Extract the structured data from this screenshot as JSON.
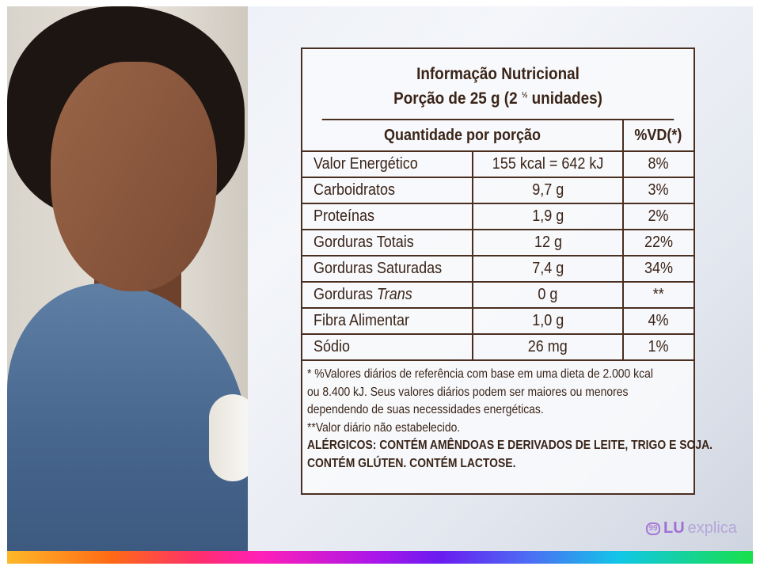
{
  "panel": {
    "title_line1": "Informação Nutricional",
    "title_line2": "Porção de 25 g (2",
    "title_fraction": "½",
    "title_line2_end": "unidades)",
    "col_quantity": "Quantidade por porção",
    "col_vd": "%VD(*)",
    "rows": [
      {
        "name": "Valor Energético",
        "amount": "155 kcal = 642 kJ",
        "vd": "8%"
      },
      {
        "name": "Carboidratos",
        "amount": "9,7 g",
        "vd": "3%"
      },
      {
        "name": "Proteínas",
        "amount": "1,9 g",
        "vd": "2%"
      },
      {
        "name": "Gorduras Totais",
        "amount": "12 g",
        "vd": "22%"
      },
      {
        "name": "Gorduras Saturadas",
        "amount": "7,4 g",
        "vd": "34%"
      },
      {
        "name": "Gorduras",
        "name_italic": "Trans",
        "amount": "0 g",
        "vd": "**"
      },
      {
        "name": "Fibra Alimentar",
        "amount": "1,0 g",
        "vd": "4%"
      },
      {
        "name": "Sódio",
        "amount": "26 mg",
        "vd": "1%"
      }
    ],
    "notes": [
      "* %Valores diários de referência com base em uma dieta de 2.000 kcal",
      "ou 8.400 kJ. Seus valores diários podem ser maiores ou menores",
      "dependendo de suas necessidades energéticas.",
      "**Valor diário não estabelecido."
    ],
    "allergens": [
      "ALÉRGICOS: CONTÉM AMÊNDOAS E DERIVADOS DE LEITE, TRIGO E SOJA.",
      "CONTÉM GLÚTEN. CONTÉM LACTOSE."
    ]
  },
  "logo": {
    "bubble": "99",
    "brand": "LU",
    "suffix": "explica"
  },
  "colors": {
    "border": "#4a2e20",
    "text": "#3a2418",
    "logo": "#9f6fd6"
  }
}
